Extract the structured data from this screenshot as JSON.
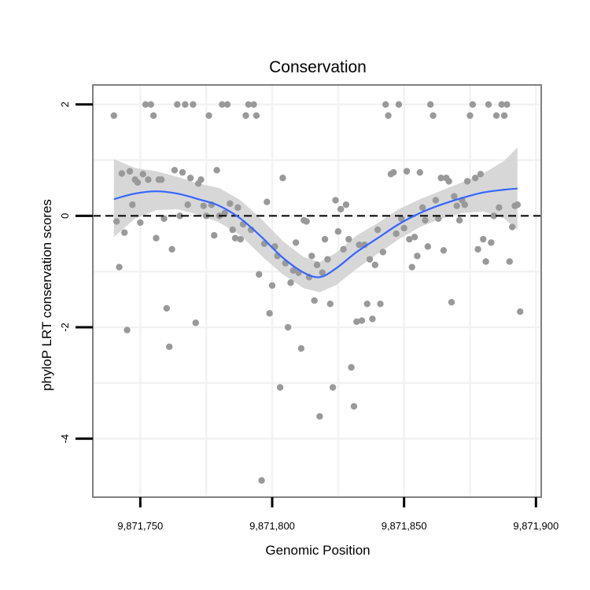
{
  "chart_data": {
    "type": "scatter",
    "title": "Conservation",
    "xlabel": "Genomic Position",
    "ylabel": "phyloP LRT conservation scores",
    "xlim": [
      9871732,
      9871902
    ],
    "ylim": [
      -5.05,
      2.35
    ],
    "xticks": [
      {
        "value": 9871750,
        "label": "9,871,750"
      },
      {
        "value": 9871800,
        "label": "9,871,800"
      },
      {
        "value": 9871850,
        "label": "9,871,850"
      },
      {
        "value": 9871900,
        "label": "9,871,900"
      }
    ],
    "yticks": [
      {
        "value": 2,
        "label": "2"
      },
      {
        "value": 0,
        "label": "0"
      },
      {
        "value": -2,
        "label": "-2"
      },
      {
        "value": -4,
        "label": "-4"
      }
    ],
    "reference_line": {
      "y": 0,
      "style": "dashed",
      "color": "#000000"
    },
    "grid": true,
    "colors": {
      "points": "#999999",
      "smooth": "#3366ff",
      "ribbon": "#d3d3d3",
      "panel_border": "#808080",
      "grid": "#f2f2f2"
    },
    "points": [
      [
        9871740,
        1.8
      ],
      [
        9871741,
        -0.1
      ],
      [
        9871742,
        -0.92
      ],
      [
        9871743,
        0.76
      ],
      [
        9871744,
        -0.3
      ],
      [
        9871745,
        -2.05
      ],
      [
        9871746,
        0.8
      ],
      [
        9871747,
        0.2
      ],
      [
        9871748,
        0.65
      ],
      [
        9871749,
        0.6
      ],
      [
        9871750,
        -0.12
      ],
      [
        9871751,
        0.75
      ],
      [
        9871752,
        2.0
      ],
      [
        9871753,
        0.65
      ],
      [
        9871754,
        2.0
      ],
      [
        9871755,
        1.8
      ],
      [
        9871756,
        -0.4
      ],
      [
        9871757,
        0.65
      ],
      [
        9871758,
        0.65
      ],
      [
        9871759,
        -0.05
      ],
      [
        9871760,
        -1.66
      ],
      [
        9871761,
        -2.35
      ],
      [
        9871762,
        -0.6
      ],
      [
        9871763,
        0.82
      ],
      [
        9871764,
        2.0
      ],
      [
        9871765,
        0.0
      ],
      [
        9871766,
        0.78
      ],
      [
        9871767,
        2.0
      ],
      [
        9871768,
        0.2
      ],
      [
        9871769,
        0.68
      ],
      [
        9871770,
        2.0
      ],
      [
        9871771,
        -1.92
      ],
      [
        9871772,
        0.58
      ],
      [
        9871773,
        0.65
      ],
      [
        9871774,
        0.18
      ],
      [
        9871775,
        0.0
      ],
      [
        9871776,
        1.8
      ],
      [
        9871777,
        0.2
      ],
      [
        9871778,
        -0.35
      ],
      [
        9871779,
        0.82
      ],
      [
        9871780,
        0.0
      ],
      [
        9871781,
        2.0
      ],
      [
        9871782,
        0.05
      ],
      [
        9871783,
        2.0
      ],
      [
        9871784,
        0.22
      ],
      [
        9871785,
        -0.25
      ],
      [
        9871786,
        -0.4
      ],
      [
        9871787,
        0.15
      ],
      [
        9871788,
        -0.42
      ],
      [
        9871789,
        -0.15
      ],
      [
        9871790,
        1.8
      ],
      [
        9871791,
        2.0
      ],
      [
        9871792,
        -0.25
      ],
      [
        9871793,
        2.0
      ],
      [
        9871794,
        1.8
      ],
      [
        9871795,
        -1.05
      ],
      [
        9871796,
        -4.75
      ],
      [
        9871797,
        -0.5
      ],
      [
        9871798,
        0.25
      ],
      [
        9871799,
        -1.75
      ],
      [
        9871800,
        -1.25
      ],
      [
        9871801,
        -0.55
      ],
      [
        9871802,
        -0.72
      ],
      [
        9871803,
        -3.08
      ],
      [
        9871804,
        0.68
      ],
      [
        9871805,
        -0.85
      ],
      [
        9871806,
        -2.0
      ],
      [
        9871807,
        -1.2
      ],
      [
        9871808,
        -0.98
      ],
      [
        9871809,
        -0.48
      ],
      [
        9871810,
        -1.02
      ],
      [
        9871811,
        -2.38
      ],
      [
        9871812,
        -0.08
      ],
      [
        9871813,
        -0.1
      ],
      [
        9871814,
        -1.1
      ],
      [
        9871815,
        -0.72
      ],
      [
        9871816,
        -1.52
      ],
      [
        9871817,
        -0.88
      ],
      [
        9871818,
        -3.6
      ],
      [
        9871819,
        -1.02
      ],
      [
        9871820,
        -0.42
      ],
      [
        9871821,
        -0.78
      ],
      [
        9871822,
        -1.58
      ],
      [
        9871823,
        -3.08
      ],
      [
        9871824,
        0.28
      ],
      [
        9871825,
        -0.28
      ],
      [
        9871826,
        0.12
      ],
      [
        9871827,
        -0.6
      ],
      [
        9871828,
        0.2
      ],
      [
        9871829,
        -0.42
      ],
      [
        9871830,
        -2.72
      ],
      [
        9871831,
        -3.42
      ],
      [
        9871832,
        -1.9
      ],
      [
        9871833,
        -0.52
      ],
      [
        9871834,
        -1.88
      ],
      [
        9871835,
        -0.52
      ],
      [
        9871836,
        -1.58
      ],
      [
        9871837,
        -0.78
      ],
      [
        9871838,
        -1.85
      ],
      [
        9871839,
        -0.88
      ],
      [
        9871840,
        -0.25
      ],
      [
        9871841,
        -1.58
      ],
      [
        9871842,
        -0.65
      ],
      [
        9871843,
        2.0
      ],
      [
        9871844,
        1.8
      ],
      [
        9871845,
        0.75
      ],
      [
        9871846,
        0.78
      ],
      [
        9871847,
        -0.32
      ],
      [
        9871848,
        2.0
      ],
      [
        9871849,
        -0.05
      ],
      [
        9871850,
        -0.22
      ],
      [
        9871851,
        0.8
      ],
      [
        9871852,
        -0.42
      ],
      [
        9871853,
        -0.92
      ],
      [
        9871854,
        -0.38
      ],
      [
        9871855,
        -0.72
      ],
      [
        9871856,
        0.78
      ],
      [
        9871857,
        0.15
      ],
      [
        9871858,
        -0.08
      ],
      [
        9871859,
        -0.55
      ],
      [
        9871860,
        2.0
      ],
      [
        9871861,
        1.8
      ],
      [
        9871862,
        0.28
      ],
      [
        9871863,
        -0.05
      ],
      [
        9871864,
        0.68
      ],
      [
        9871865,
        -0.62
      ],
      [
        9871866,
        0.68
      ],
      [
        9871867,
        0.62
      ],
      [
        9871868,
        -1.55
      ],
      [
        9871869,
        0.35
      ],
      [
        9871870,
        0.18
      ],
      [
        9871871,
        -0.08
      ],
      [
        9871872,
        0.28
      ],
      [
        9871873,
        0.2
      ],
      [
        9871874,
        0.62
      ],
      [
        9871875,
        1.8
      ],
      [
        9871876,
        2.0
      ],
      [
        9871877,
        0.68
      ],
      [
        9871878,
        -0.6
      ],
      [
        9871879,
        0.75
      ],
      [
        9871880,
        -0.42
      ],
      [
        9871881,
        -0.82
      ],
      [
        9871882,
        2.0
      ],
      [
        9871883,
        -0.48
      ],
      [
        9871884,
        0.0
      ],
      [
        9871885,
        1.8
      ],
      [
        9871886,
        0.15
      ],
      [
        9871887,
        2.0
      ],
      [
        9871888,
        1.8
      ],
      [
        9871889,
        2.0
      ],
      [
        9871890,
        -0.82
      ],
      [
        9871891,
        -0.2
      ],
      [
        9871892,
        0.18
      ],
      [
        9871893,
        0.2
      ],
      [
        9871894,
        -1.72
      ]
    ],
    "smooth": {
      "x": [
        9871740,
        9871748,
        9871756,
        9871764,
        9871772,
        9871780,
        9871788,
        9871796,
        9871804,
        9871812,
        9871818,
        9871824,
        9871832,
        9871840,
        9871848,
        9871856,
        9871864,
        9871872,
        9871880,
        9871888,
        9871893
      ],
      "y": [
        0.3,
        0.4,
        0.44,
        0.4,
        0.3,
        0.18,
        -0.05,
        -0.38,
        -0.75,
        -1.02,
        -1.1,
        -0.95,
        -0.65,
        -0.4,
        -0.15,
        0.05,
        0.2,
        0.32,
        0.42,
        0.47,
        0.49
      ],
      "lo": [
        -0.38,
        -0.05,
        0.1,
        0.12,
        0.02,
        -0.12,
        -0.35,
        -0.72,
        -1.05,
        -1.3,
        -1.37,
        -1.25,
        -0.95,
        -0.68,
        -0.42,
        -0.2,
        -0.05,
        0.05,
        0.08,
        -0.05,
        -0.25
      ],
      "hi": [
        1.02,
        0.86,
        0.8,
        0.7,
        0.58,
        0.5,
        0.28,
        -0.06,
        -0.45,
        -0.74,
        -0.83,
        -0.67,
        -0.35,
        -0.13,
        0.12,
        0.3,
        0.45,
        0.6,
        0.76,
        0.99,
        1.23
      ]
    }
  }
}
